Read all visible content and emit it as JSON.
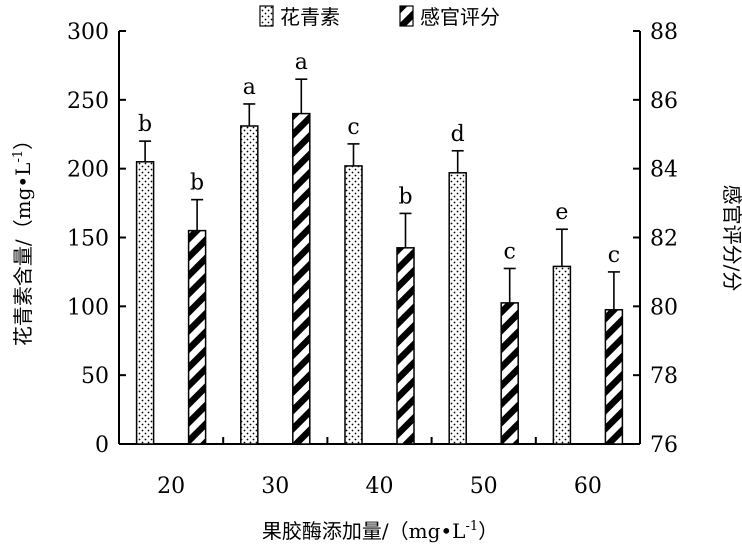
{
  "chart_data": {
    "type": "bar",
    "categories": [
      "20",
      "30",
      "40",
      "50",
      "60"
    ],
    "xlabel_main": "果胶酶添加量/",
    "xlabel_unit_pre": "（mg•L",
    "xlabel_unit_sup": "-1",
    "xlabel_unit_post": "）",
    "ylabel_left_main": "花青素含量/",
    "ylabel_left_unit_pre": "（mg•L",
    "ylabel_left_unit_sup": "-1",
    "ylabel_left_unit_post": "）",
    "ylabel_right": "感官评分/分",
    "ylim_left": [
      0,
      300
    ],
    "ylim_right": [
      76,
      88
    ],
    "yticks_left": [
      "0",
      "50",
      "100",
      "150",
      "200",
      "250",
      "300"
    ],
    "yticks_right": [
      "76",
      "78",
      "80",
      "82",
      "84",
      "86",
      "88"
    ],
    "series": [
      {
        "name": "花青素",
        "axis": "left",
        "pattern": "dots",
        "values": [
          205,
          231,
          202,
          197,
          129
        ],
        "errors": [
          15,
          16,
          16,
          16,
          27
        ],
        "labels": [
          "b",
          "a",
          "c",
          "d",
          "e"
        ]
      },
      {
        "name": "感官评分",
        "axis": "right",
        "pattern": "diagonal-stripes",
        "values": [
          82.2,
          85.6,
          81.7,
          80.1,
          79.9
        ],
        "errors": [
          0.9,
          1.0,
          1.0,
          1.0,
          1.1
        ],
        "labels": [
          "b",
          "a",
          "b",
          "c",
          "c"
        ]
      }
    ],
    "legend_position": "top-center",
    "grid": false
  }
}
